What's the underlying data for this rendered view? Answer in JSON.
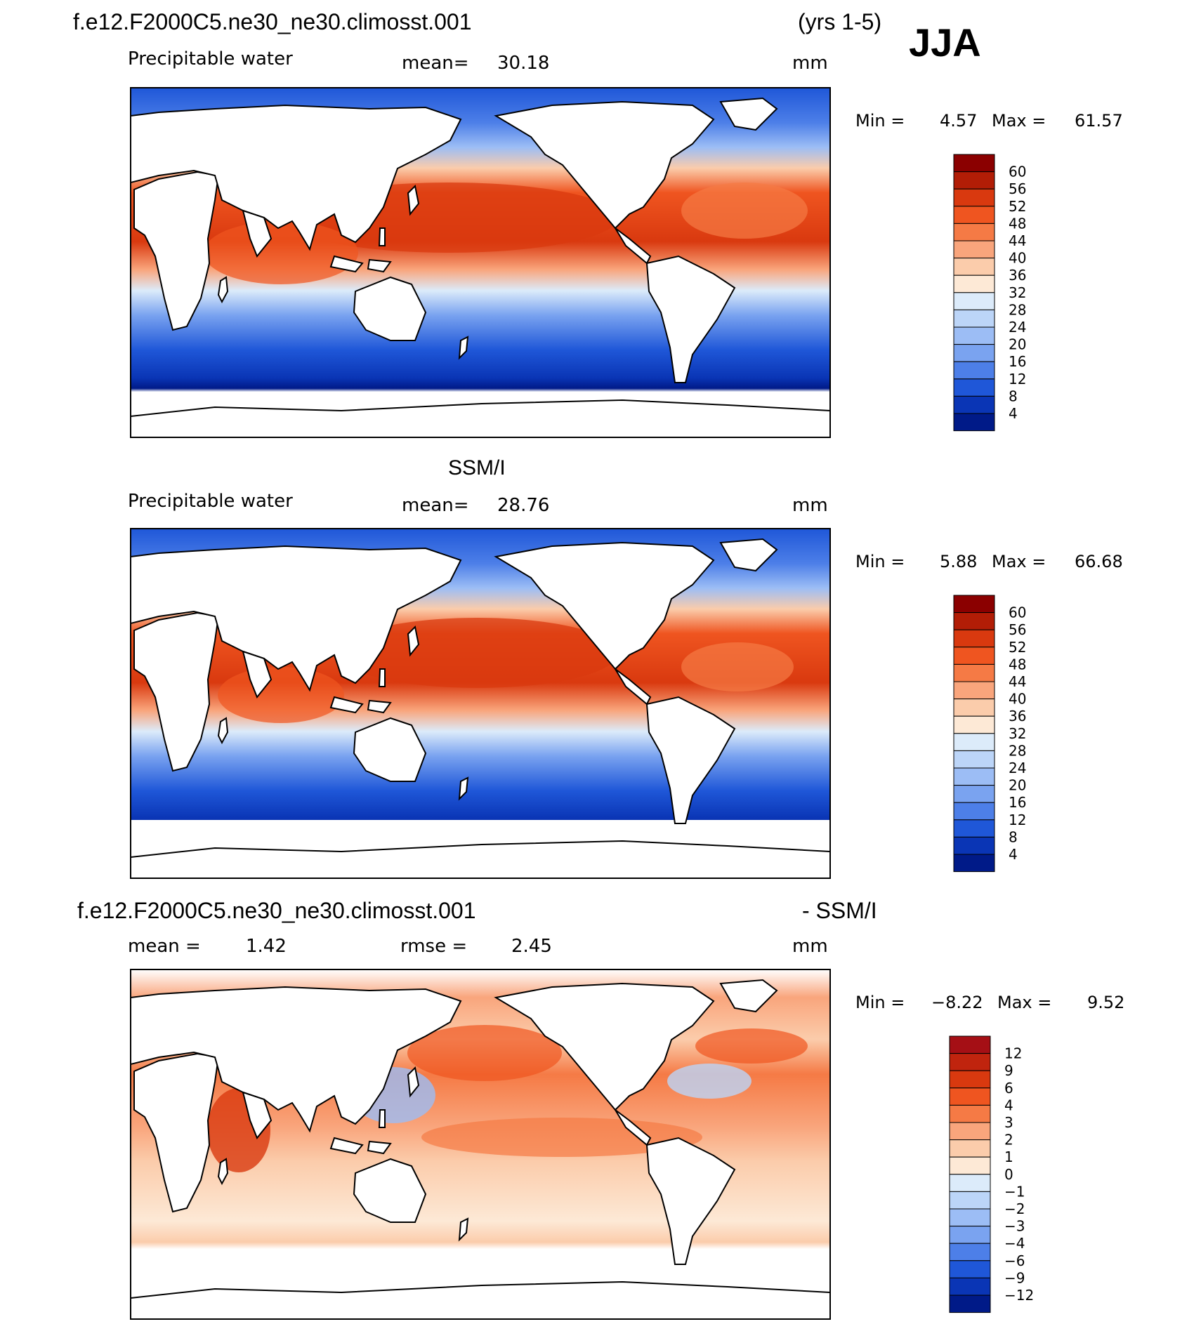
{
  "header": {
    "case_name": "f.e12.F2000C5.ne30_ne30.climosst.001",
    "years": "(yrs 1-5)",
    "season": "JJA"
  },
  "panels": [
    {
      "id": "model",
      "title": "",
      "variable": "Precipitable water",
      "stat_left_label": "mean=",
      "stat_left_value": "30.18",
      "stat_right_label": "",
      "stat_right_value": "",
      "units": "mm",
      "min_label": "Min =",
      "min_value": "4.57",
      "max_label": "Max =",
      "max_value": "61.57",
      "levels": [
        "60",
        "56",
        "52",
        "48",
        "44",
        "40",
        "36",
        "32",
        "28",
        "24",
        "20",
        "16",
        "12",
        "8",
        "4"
      ],
      "colors": [
        "#8b0000",
        "#b21d06",
        "#d9390f",
        "#ef5520",
        "#f57a45",
        "#f9a57c",
        "#fbccab",
        "#fde9d6",
        "#dcebfa",
        "#bcd5f8",
        "#9cbdf5",
        "#7aa3f0",
        "#4d7fe8",
        "#1f57d8",
        "#0a35b5",
        "#001a88"
      ]
    },
    {
      "id": "obs",
      "title": "SSM/I",
      "variable": "Precipitable water",
      "stat_left_label": "mean=",
      "stat_left_value": "28.76",
      "stat_right_label": "",
      "stat_right_value": "",
      "units": "mm",
      "min_label": "Min =",
      "min_value": "5.88",
      "max_label": "Max =",
      "max_value": "66.68",
      "levels": [
        "60",
        "56",
        "52",
        "48",
        "44",
        "40",
        "36",
        "32",
        "28",
        "24",
        "20",
        "16",
        "12",
        "8",
        "4"
      ],
      "colors": [
        "#8b0000",
        "#b21d06",
        "#d9390f",
        "#ef5520",
        "#f57a45",
        "#f9a57c",
        "#fbccab",
        "#fde9d6",
        "#dcebfa",
        "#bcd5f8",
        "#9cbdf5",
        "#7aa3f0",
        "#4d7fe8",
        "#1f57d8",
        "#0a35b5",
        "#001a88"
      ]
    },
    {
      "id": "diff",
      "title_left": "f.e12.F2000C5.ne30_ne30.climosst.001",
      "title_right": "- SSM/I",
      "stat_left_label": "mean =",
      "stat_left_value": "1.42",
      "stat_right_label": "rmse =",
      "stat_right_value": "2.45",
      "units": "mm",
      "min_label": "Min =",
      "min_value": "−8.22",
      "max_label": "Max =",
      "max_value": "9.52",
      "levels": [
        "12",
        "9",
        "6",
        "4",
        "3",
        "2",
        "1",
        "0",
        "−1",
        "−2",
        "−3",
        "−4",
        "−6",
        "−9",
        "−12"
      ],
      "colors": [
        "#a50f15",
        "#c0240e",
        "#d9390f",
        "#ef5520",
        "#f57a45",
        "#f9a57c",
        "#fbccab",
        "#fde9d6",
        "#dcebfa",
        "#bcd5f8",
        "#9cbdf5",
        "#7aa3f0",
        "#4d7fe8",
        "#1f57d8",
        "#0a35b5",
        "#001a88"
      ]
    }
  ]
}
